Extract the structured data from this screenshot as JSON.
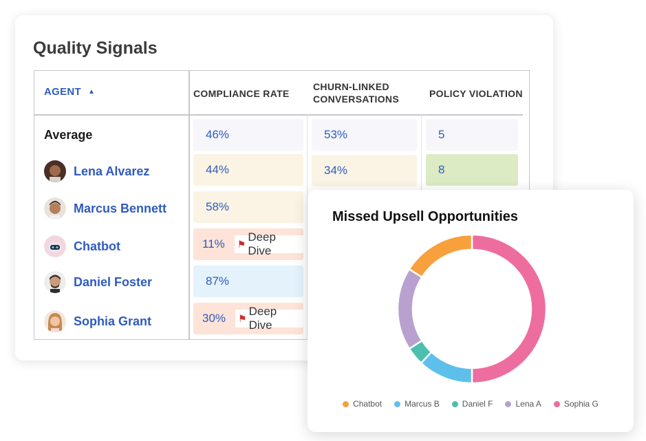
{
  "card": {
    "title": "Quality Signals",
    "columns": {
      "agent": "AGENT",
      "compliance": "COMPLIANCE RATE",
      "churn": "CHURN-LINKED CONVERSATIONS",
      "policy": "POLICY VIOLATION"
    },
    "sort_icon": "▲",
    "rows": [
      {
        "name": "Average",
        "compliance": "46%",
        "churn": "53%",
        "policy": "5",
        "flag": ""
      },
      {
        "name": "Lena Alvarez",
        "compliance": "44%",
        "churn": "34%",
        "policy": "8",
        "flag": ""
      },
      {
        "name": "Marcus Bennett",
        "compliance": "58%",
        "churn": "",
        "policy": "",
        "flag": ""
      },
      {
        "name": "Chatbot",
        "compliance": "11%",
        "churn": "",
        "policy": "",
        "flag": "Deep Dive"
      },
      {
        "name": "Daniel Foster",
        "compliance": "87%",
        "churn": "",
        "policy": "",
        "flag": ""
      },
      {
        "name": "Sophia Grant",
        "compliance": "30%",
        "churn": "",
        "policy": "",
        "flag": "Deep Dive"
      }
    ],
    "flag_icon": "flag-icon",
    "colors": {
      "link_blue": "#2f5bbf",
      "cell_neutral": "#f6f6fb",
      "cell_cream": "#fbf4e4",
      "cell_peach": "#fde3d8",
      "cell_blue": "#e3f2fb",
      "cell_green": "#dcebc4"
    }
  },
  "chart_data": {
    "type": "pie",
    "title": "Missed Upsell Opportunities",
    "donut": true,
    "legend_position": "bottom",
    "categories": [
      "Chatbot",
      "Marcus B",
      "Daniel F",
      "Lena A",
      "Sophia G"
    ],
    "values": [
      16,
      12,
      4,
      18,
      50
    ],
    "colors": [
      "#f7a03c",
      "#5ebfea",
      "#4cbfae",
      "#b8a1cf",
      "#ee6d9f"
    ]
  }
}
